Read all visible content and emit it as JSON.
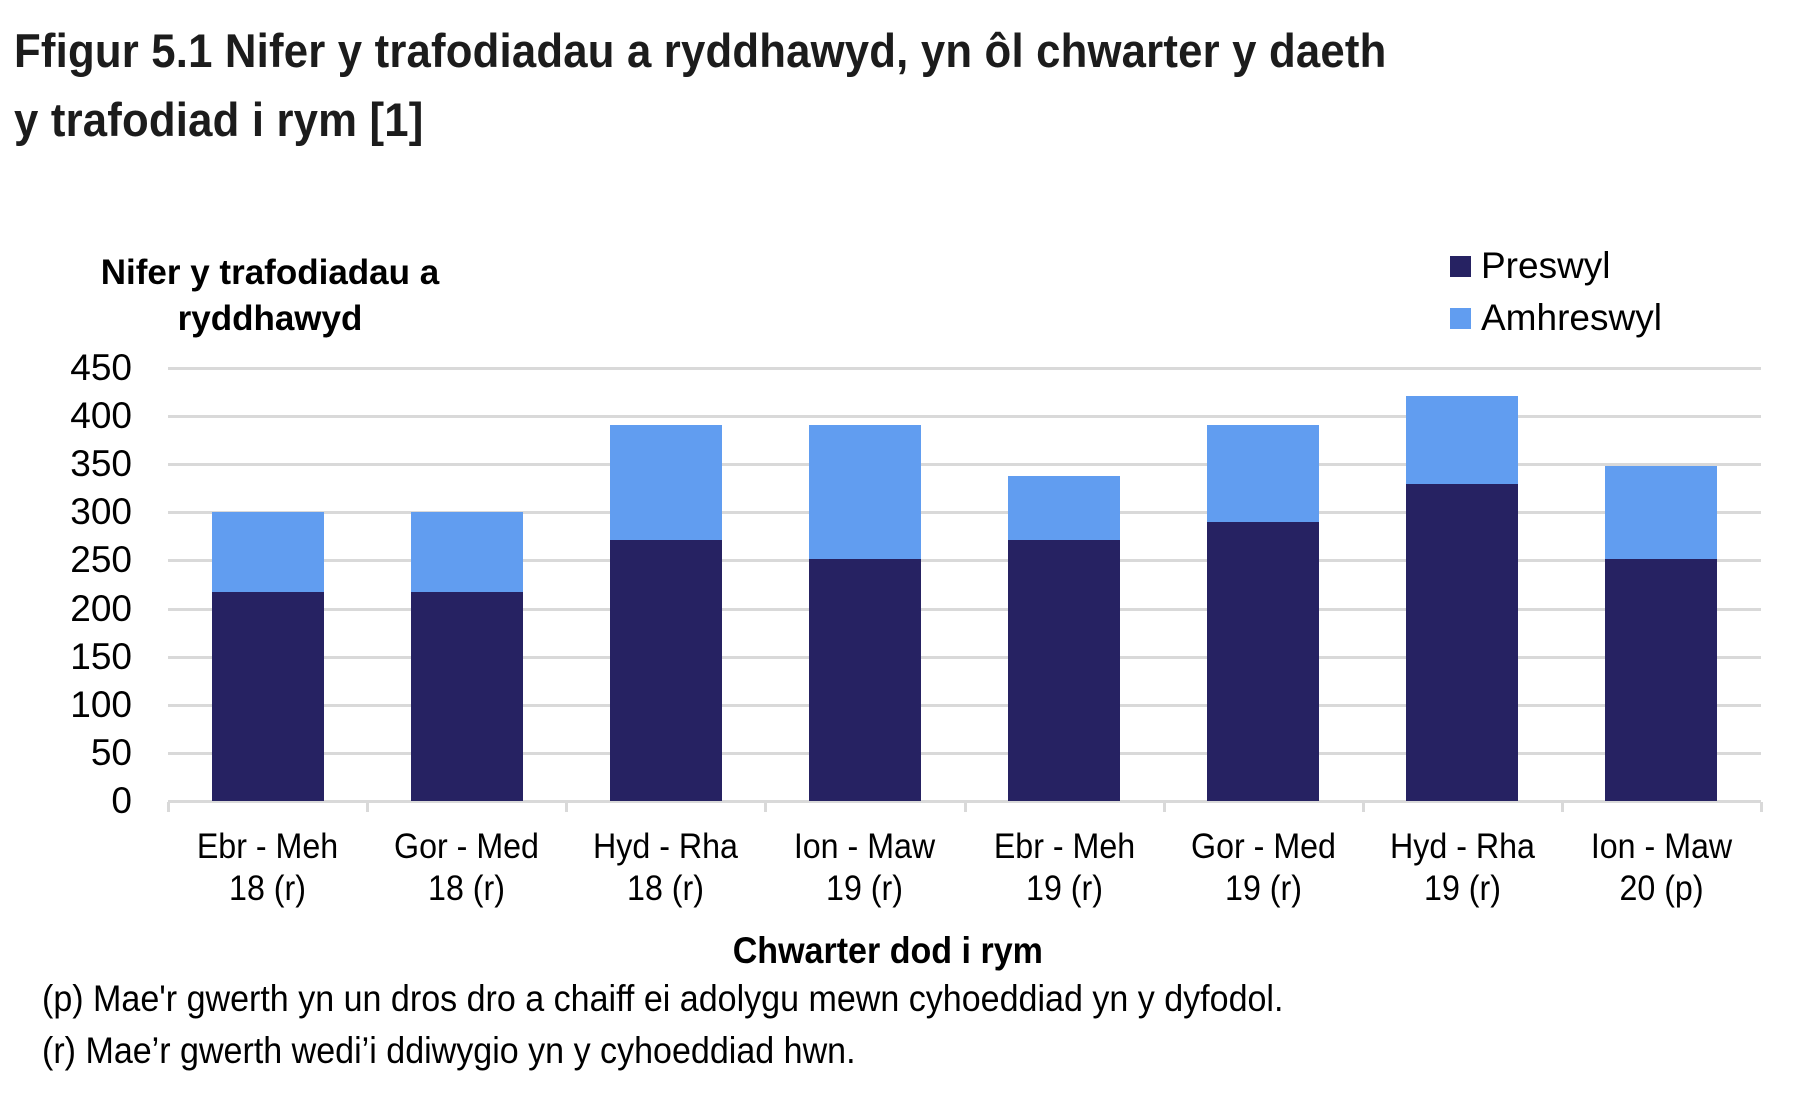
{
  "title": {
    "line1": "Ffigur 5.1  Nifer y trafodiadau a ryddhawyd, yn ôl chwarter y daeth",
    "line2": "y trafodiad i rym [1]"
  },
  "colors": {
    "preswyl": "#262262",
    "amhreswyl": "#619df0",
    "grid": "#d9d9d9"
  },
  "chart_data": {
    "type": "bar",
    "stacked": true,
    "title": "Ffigur 5.1  Nifer y trafodiadau a ryddhawyd, yn ôl chwarter y daeth y trafodiad i rym [1]",
    "xlabel": "Chwarter dod i rym",
    "ylabel": "Nifer y trafodiadau a ryddhawyd",
    "ylim": [
      0,
      450
    ],
    "yticks": [
      0,
      50,
      100,
      150,
      200,
      250,
      300,
      350,
      400,
      450
    ],
    "grid": true,
    "legend_position": "top-right",
    "categories": [
      "Ebr - Meh 18 (r)",
      "Gor - Med 18 (r)",
      "Hyd - Rha 18 (r)",
      "Ion - Maw 19 (r)",
      "Ebr - Meh 19 (r)",
      "Gor - Med 19 (r)",
      "Hyd - Rha 19 (r)",
      "Ion - Maw 20 (p)"
    ],
    "series": [
      {
        "name": "Preswyl",
        "color": "#262262",
        "values": [
          217,
          217,
          271,
          251,
          271,
          290,
          329,
          251
        ]
      },
      {
        "name": "Amhreswyl",
        "color": "#619df0",
        "values": [
          83,
          83,
          120,
          140,
          67,
          101,
          92,
          97
        ]
      }
    ],
    "totals": [
      300,
      300,
      391,
      391,
      338,
      391,
      421,
      348
    ]
  },
  "axis": {
    "ylabel_line1": "Nifer y trafodiadau a",
    "ylabel_line2": "ryddhawyd",
    "yticks": [
      "450",
      "400",
      "350",
      "300",
      "250",
      "200",
      "150",
      "100",
      "50",
      "0"
    ],
    "xtitle": "Chwarter dod i rym",
    "xlabels": [
      {
        "line1": "Ebr - Meh",
        "line2": "18 (r)"
      },
      {
        "line1": "Gor - Med",
        "line2": "18 (r)"
      },
      {
        "line1": "Hyd - Rha",
        "line2": "18 (r)"
      },
      {
        "line1": "Ion - Maw",
        "line2": "19 (r)"
      },
      {
        "line1": "Ebr - Meh",
        "line2": "19 (r)"
      },
      {
        "line1": "Gor - Med",
        "line2": "19 (r)"
      },
      {
        "line1": "Hyd - Rha",
        "line2": "19 (r)"
      },
      {
        "line1": "Ion - Maw",
        "line2": "20 (p)"
      }
    ]
  },
  "legend": {
    "items": [
      "Preswyl",
      "Amhreswyl"
    ]
  },
  "notes": [
    "(p) Mae'r gwerth yn un dros dro a chaiff ei adolygu mewn cyhoeddiad yn y dyfodol.",
    "(r) Mae’r gwerth wedi’i ddiwygio yn y cyhoeddiad hwn."
  ]
}
